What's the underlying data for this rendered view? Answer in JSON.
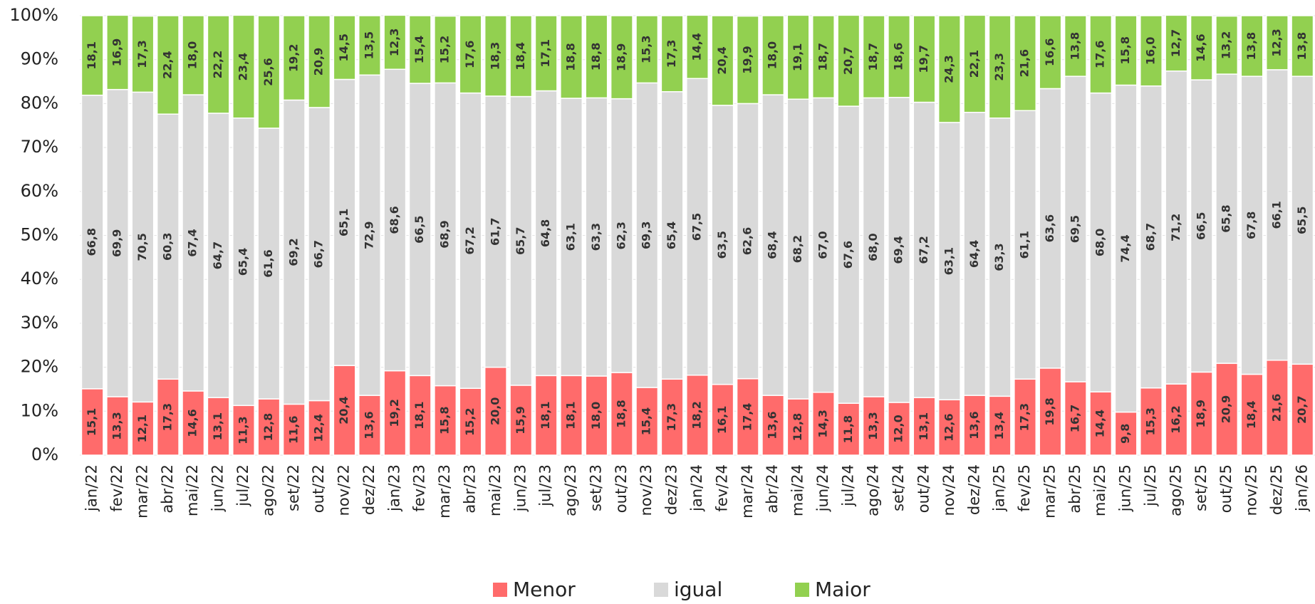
{
  "chart_data": {
    "type": "stacked-bar",
    "categories": [
      "jan/22",
      "fev/22",
      "mar/22",
      "abr/22",
      "mai/22",
      "jun/22",
      "jul/22",
      "ago/22",
      "set/22",
      "out/22",
      "nov/22",
      "dez/22",
      "jan/23",
      "fev/23",
      "mar/23",
      "abr/23",
      "mai/23",
      "jun/23",
      "jul/23",
      "ago/23",
      "set/23",
      "out/23",
      "nov/23",
      "dez/23",
      "jan/24",
      "fev/24",
      "mar/24",
      "abr/24",
      "mai/24",
      "jun/24",
      "jul/24",
      "ago/24",
      "set/24",
      "out/24",
      "nov/24",
      "dez/24",
      "jan/25",
      "fev/25",
      "mar/25",
      "abr/25",
      "mai/25",
      "jun/25",
      "jul/25",
      "ago/25",
      "set/25",
      "out/25",
      "nov/25",
      "dez/25",
      "jan/26"
    ],
    "series": [
      {
        "name": "Menor",
        "color": "#ff6b6b",
        "values": [
          15.1,
          13.3,
          12.1,
          17.3,
          14.6,
          13.1,
          11.3,
          12.8,
          11.6,
          12.4,
          20.4,
          13.6,
          19.2,
          18.1,
          15.8,
          15.2,
          20.0,
          15.9,
          18.1,
          18.1,
          18.0,
          18.8,
          15.4,
          17.3,
          18.2,
          16.1,
          17.4,
          13.6,
          12.8,
          14.3,
          11.8,
          13.3,
          12.0,
          13.1,
          12.6,
          13.6,
          13.4,
          17.3,
          19.8,
          16.7,
          14.4,
          9.8,
          15.3,
          16.2,
          18.9,
          20.9,
          18.4,
          21.6,
          20.7
        ],
        "value_labels": [
          "15,1",
          "13,3",
          "12,1",
          "17,3",
          "14,6",
          "13,1",
          "11,3",
          "12,8",
          "11,6",
          "12,4",
          "20,4",
          "13,6",
          "19,2",
          "18,1",
          "15,8",
          "15,2",
          "20,0",
          "15,9",
          "18,1",
          "18,1",
          "18,0",
          "18,8",
          "15,4",
          "17,3",
          "18,2",
          "16,1",
          "17,4",
          "13,6",
          "12,8",
          "14,3",
          "11,8",
          "13,3",
          "12,0",
          "13,1",
          "12,6",
          "13,6",
          "13,4",
          "17,3",
          "19,8",
          "16,7",
          "14,4",
          "9,8",
          "15,3",
          "16,2",
          "18,9",
          "20,9",
          "18,4",
          "21,6",
          "20,7"
        ]
      },
      {
        "name": "igual",
        "color": "#d9d9d9",
        "values": [
          66.8,
          69.9,
          70.5,
          60.3,
          67.4,
          64.7,
          65.4,
          61.6,
          69.2,
          66.7,
          65.1,
          72.9,
          68.6,
          66.5,
          68.9,
          67.2,
          61.7,
          65.7,
          64.8,
          63.1,
          63.3,
          62.3,
          69.3,
          65.4,
          67.5,
          63.5,
          62.6,
          68.4,
          68.2,
          67.0,
          67.6,
          68.0,
          69.4,
          67.2,
          63.1,
          64.4,
          63.3,
          61.1,
          63.6,
          69.5,
          68.0,
          74.4,
          68.7,
          71.2,
          66.5,
          65.8,
          67.8,
          66.1,
          65.5
        ],
        "value_labels": [
          "66,8",
          "69,9",
          "70,5",
          "60,3",
          "67,4",
          "64,7",
          "65,4",
          "61,6",
          "69,2",
          "66,7",
          "65,1",
          "72,9",
          "68,6",
          "66,5",
          "68,9",
          "67,2",
          "61,7",
          "65,7",
          "64,8",
          "63,1",
          "63,3",
          "62,3",
          "69,3",
          "65,4",
          "67,5",
          "63,5",
          "62,6",
          "68,4",
          "68,2",
          "67,0",
          "67,6",
          "68,0",
          "69,4",
          "67,2",
          "63,1",
          "64,4",
          "63,3",
          "61,1",
          "63,6",
          "69,5",
          "68,0",
          "74,4",
          "68,7",
          "71,2",
          "66,5",
          "65,8",
          "67,8",
          "66,1",
          "65,5"
        ]
      },
      {
        "name": "Maior",
        "color": "#92d050",
        "values": [
          18.1,
          16.9,
          17.3,
          22.4,
          18.0,
          22.2,
          23.4,
          25.6,
          19.2,
          20.9,
          14.5,
          13.5,
          12.3,
          15.4,
          15.2,
          17.6,
          18.3,
          18.4,
          17.1,
          18.8,
          18.8,
          18.9,
          15.3,
          17.3,
          14.4,
          20.4,
          19.9,
          18.0,
          19.1,
          18.7,
          20.7,
          18.7,
          18.6,
          19.7,
          24.3,
          22.1,
          23.3,
          21.6,
          16.6,
          13.8,
          17.6,
          15.8,
          16.0,
          12.7,
          14.6,
          13.2,
          13.8,
          12.3,
          13.8
        ],
        "value_labels": [
          "18,1",
          "16,9",
          "17,3",
          "22,4",
          "18,0",
          "22,2",
          "23,4",
          "25,6",
          "19,2",
          "20,9",
          "14,5",
          "13,5",
          "12,3",
          "15,4",
          "15,2",
          "17,6",
          "18,3",
          "18,4",
          "17,1",
          "18,8",
          "18,8",
          "18,9",
          "15,3",
          "17,3",
          "14,4",
          "20,4",
          "19,9",
          "18,0",
          "19,1",
          "18,7",
          "20,7",
          "18,7",
          "18,6",
          "19,7",
          "24,3",
          "22,1",
          "23,3",
          "21,6",
          "16,6",
          "13,8",
          "17,6",
          "15,8",
          "16,0",
          "12,7",
          "14,6",
          "13,2",
          "13,8",
          "12,3",
          "13,8"
        ]
      }
    ],
    "ylim": [
      0,
      100
    ],
    "yticks": [
      {
        "value": 0,
        "label": "0%"
      },
      {
        "value": 10,
        "label": "10%"
      },
      {
        "value": 20,
        "label": "20%"
      },
      {
        "value": 30,
        "label": "30%"
      },
      {
        "value": 40,
        "label": "40%"
      },
      {
        "value": 50,
        "label": "50%"
      },
      {
        "value": 60,
        "label": "60%"
      },
      {
        "value": 70,
        "label": "70%"
      },
      {
        "value": 80,
        "label": "80%"
      },
      {
        "value": 90,
        "label": "90%"
      },
      {
        "value": 100,
        "label": "100%"
      }
    ],
    "grid": true,
    "legend": "bottom"
  }
}
